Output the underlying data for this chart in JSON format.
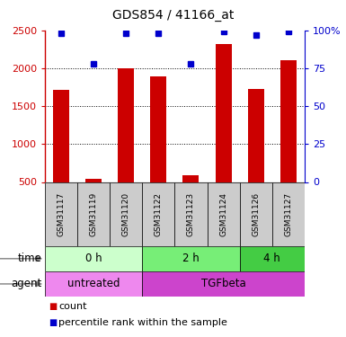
{
  "title": "GDS854 / 41166_at",
  "samples": [
    "GSM31117",
    "GSM31119",
    "GSM31120",
    "GSM31122",
    "GSM31123",
    "GSM31124",
    "GSM31126",
    "GSM31127"
  ],
  "counts": [
    1720,
    540,
    2000,
    1890,
    590,
    2320,
    1730,
    2110
  ],
  "percentile_ranks": [
    98,
    78,
    98,
    98,
    78,
    99,
    97,
    99
  ],
  "ylim_left": [
    500,
    2500
  ],
  "ylim_right": [
    0,
    100
  ],
  "yticks_left": [
    500,
    1000,
    1500,
    2000,
    2500
  ],
  "yticks_right": [
    0,
    25,
    50,
    75,
    100
  ],
  "bar_color": "#cc0000",
  "dot_color": "#0000cc",
  "time_groups": [
    {
      "label": "0 h",
      "start": 0,
      "end": 3,
      "color": "#ccffcc"
    },
    {
      "label": "2 h",
      "start": 3,
      "end": 6,
      "color": "#77ee77"
    },
    {
      "label": "4 h",
      "start": 6,
      "end": 8,
      "color": "#44cc44"
    }
  ],
  "agent_groups": [
    {
      "label": "untreated",
      "start": 0,
      "end": 3,
      "color": "#ee88ee"
    },
    {
      "label": "TGFbeta",
      "start": 3,
      "end": 8,
      "color": "#cc44cc"
    }
  ],
  "sample_bg_color": "#cccccc",
  "legend_count_color": "#cc0000",
  "legend_rank_color": "#0000cc",
  "right_axis_color": "#0000cc",
  "left_axis_color": "#cc0000"
}
